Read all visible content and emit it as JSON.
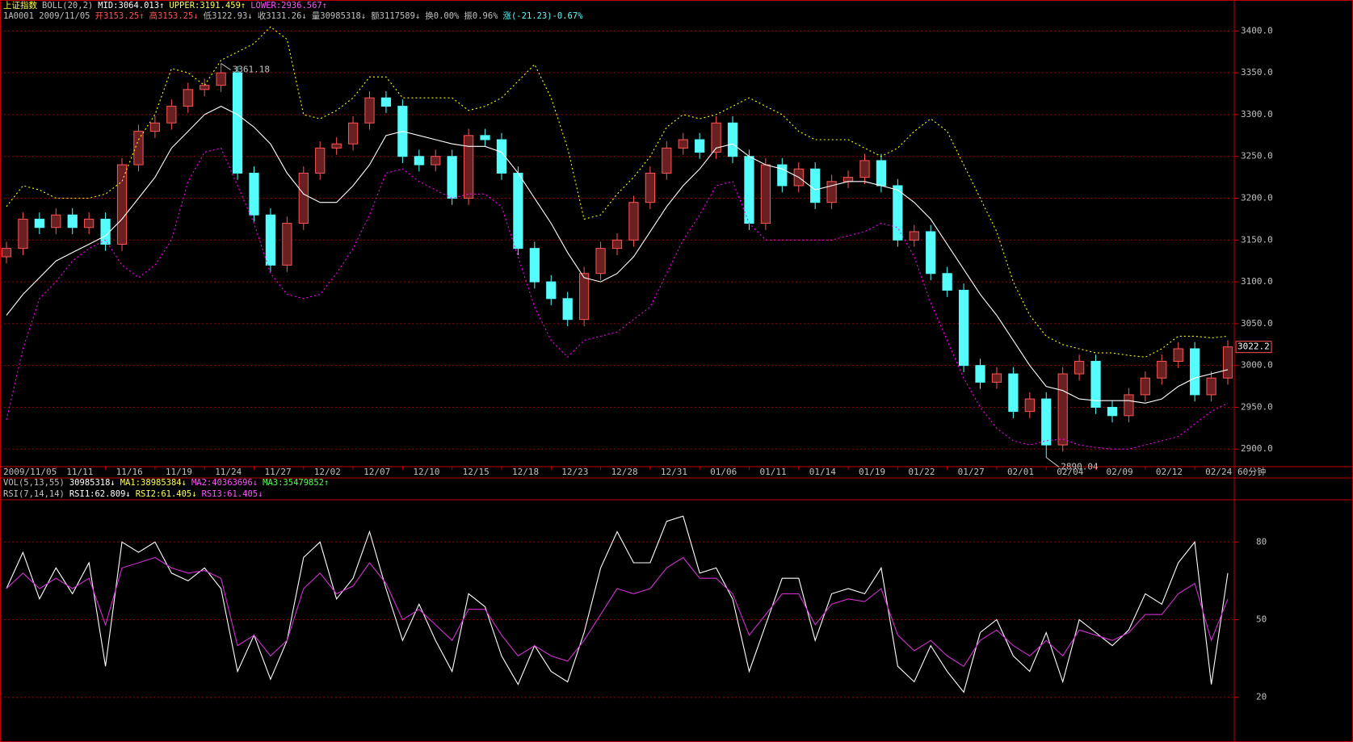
{
  "chart_data": {
    "type": "candlestick",
    "header": [
      [
        {
          "text": "上证指数",
          "color": "#ffff54"
        },
        {
          "text": "BOLL(20,2)",
          "color": "#c0c0c0"
        },
        {
          "text": "MID:3064.013↑",
          "color": "#ffffff"
        },
        {
          "text": "UPPER:3191.459↑",
          "color": "#ffff54"
        },
        {
          "text": "LOWER:2936.567↑",
          "color": "#ff54ff"
        }
      ],
      [
        {
          "text": "1A0001 2009/11/05",
          "color": "#c0c0c0"
        },
        {
          "text": "开3153.25↑",
          "color": "#ff5454"
        },
        {
          "text": "高3153.25↓",
          "color": "#ff5454"
        },
        {
          "text": "低3122.93↓",
          "color": "#c0c0c0"
        },
        {
          "text": "收3131.26↓",
          "color": "#c0c0c0"
        },
        {
          "text": "量30985318↓",
          "color": "#c0c0c0"
        },
        {
          "text": "额3117589↓",
          "color": "#c0c0c0"
        },
        {
          "text": "换0.00%",
          "color": "#c0c0c0"
        },
        {
          "text": "振0.96%",
          "color": "#c0c0c0"
        },
        {
          "text": "涨(-21.23)-0.67%",
          "color": "#54ffff"
        }
      ]
    ],
    "categories": [
      "2009/11/05",
      null,
      null,
      "11/11",
      null,
      null,
      "11/16",
      null,
      null,
      "11/19",
      null,
      null,
      "11/24",
      null,
      null,
      "11/27",
      null,
      null,
      "12/02",
      null,
      null,
      "12/07",
      null,
      null,
      "12/10",
      null,
      null,
      "12/15",
      null,
      null,
      "12/18",
      null,
      null,
      "12/23",
      null,
      null,
      "12/28",
      null,
      null,
      "12/31",
      null,
      null,
      "01/06",
      null,
      null,
      "01/11",
      null,
      null,
      "01/14",
      null,
      null,
      "01/19",
      null,
      null,
      "01/22",
      null,
      null,
      "01/27",
      null,
      null,
      "02/01",
      null,
      null,
      "02/04",
      null,
      null,
      "02/09",
      null,
      null,
      "02/12",
      null,
      null,
      "02/24",
      null,
      null
    ],
    "open": [
      3130,
      3140,
      3175,
      3165,
      3180,
      3165,
      3175,
      3145,
      3240,
      3280,
      3290,
      3310,
      3330,
      3335,
      3350,
      3230,
      3180,
      3120,
      3170,
      3230,
      3260,
      3265,
      3290,
      3320,
      3310,
      3250,
      3240,
      3250,
      3200,
      3275,
      3270,
      3230,
      3140,
      3100,
      3080,
      3055,
      3110,
      3140,
      3150,
      3195,
      3230,
      3260,
      3270,
      3255,
      3290,
      3250,
      3170,
      3240,
      3215,
      3235,
      3195,
      3220,
      3225,
      3245,
      3215,
      3150,
      3160,
      3110,
      3090,
      3000,
      2980,
      2990,
      2945,
      2960,
      2905,
      2990,
      3005,
      2950,
      2940,
      2965,
      2985,
      3005,
      3020,
      2965,
      2985
    ],
    "high": [
      3148,
      3183,
      3183,
      3188,
      3188,
      3183,
      3183,
      3248,
      3288,
      3298,
      3318,
      3338,
      3343,
      3361.18,
      3358,
      3238,
      3188,
      3178,
      3238,
      3268,
      3273,
      3298,
      3328,
      3328,
      3318,
      3258,
      3258,
      3258,
      3283,
      3283,
      3278,
      3238,
      3148,
      3108,
      3088,
      3118,
      3148,
      3158,
      3203,
      3238,
      3268,
      3278,
      3278,
      3298,
      3298,
      3258,
      3248,
      3248,
      3243,
      3243,
      3228,
      3233,
      3253,
      3253,
      3223,
      3168,
      3168,
      3118,
      3098,
      3008,
      2998,
      2998,
      2968,
      2968,
      2998,
      3013,
      3013,
      2958,
      2973,
      2993,
      3013,
      3028,
      3028,
      2993,
      3030.2
    ],
    "low": [
      3122,
      3132,
      3157,
      3157,
      3157,
      3157,
      3137,
      3137,
      3232,
      3272,
      3282,
      3302,
      3322,
      3327,
      3222,
      3172,
      3112,
      3112,
      3162,
      3222,
      3252,
      3257,
      3282,
      3302,
      3242,
      3232,
      3232,
      3192,
      3192,
      3262,
      3222,
      3132,
      3092,
      3072,
      3047,
      3047,
      3102,
      3132,
      3142,
      3187,
      3222,
      3252,
      3247,
      3247,
      3242,
      3162,
      3162,
      3207,
      3207,
      3187,
      3187,
      3212,
      3217,
      3207,
      3142,
      3142,
      3102,
      3082,
      2992,
      2972,
      2972,
      2937,
      2937,
      2890.04,
      2897,
      2982,
      2942,
      2932,
      2932,
      2957,
      2977,
      2997,
      2957,
      2957,
      2977
    ],
    "close": [
      3140,
      3175,
      3165,
      3180,
      3165,
      3175,
      3145,
      3240,
      3280,
      3290,
      3310,
      3330,
      3335,
      3350,
      3230,
      3180,
      3120,
      3170,
      3230,
      3260,
      3265,
      3290,
      3320,
      3310,
      3250,
      3240,
      3250,
      3200,
      3275,
      3270,
      3230,
      3140,
      3100,
      3080,
      3055,
      3110,
      3140,
      3150,
      3195,
      3230,
      3260,
      3270,
      3255,
      3290,
      3250,
      3170,
      3240,
      3215,
      3235,
      3195,
      3220,
      3225,
      3245,
      3215,
      3150,
      3160,
      3110,
      3090,
      3000,
      2980,
      2990,
      2945,
      2960,
      2905,
      2990,
      3005,
      2950,
      2940,
      2965,
      2985,
      3005,
      3020,
      2965,
      2985,
      3022.2
    ],
    "up_color": "#ff5454",
    "down_color": "#54fcfc",
    "series": [
      {
        "color": "#ffffff",
        "dash": false,
        "values": [
          3060,
          3085,
          3105,
          3125,
          3135,
          3145,
          3155,
          3175,
          3200,
          3225,
          3260,
          3280,
          3300,
          3310,
          3300,
          3285,
          3265,
          3230,
          3205,
          3195,
          3195,
          3215,
          3240,
          3275,
          3280,
          3275,
          3270,
          3265,
          3262,
          3262,
          3255,
          3230,
          3200,
          3170,
          3135,
          3105,
          3100,
          3110,
          3130,
          3160,
          3190,
          3215,
          3235,
          3260,
          3265,
          3250,
          3240,
          3235,
          3225,
          3210,
          3215,
          3220,
          3220,
          3215,
          3210,
          3195,
          3175,
          3145,
          3115,
          3085,
          3060,
          3030,
          3000,
          2975,
          2970,
          2960,
          2958,
          2958,
          2958,
          2955,
          2960,
          2975,
          2985,
          2990,
          2995
        ]
      },
      {
        "color": "#ffff00",
        "dash": true,
        "values": [
          3190,
          3215,
          3210,
          3200,
          3200,
          3200,
          3205,
          3220,
          3270,
          3300,
          3355,
          3350,
          3335,
          3365,
          3375,
          3385,
          3405,
          3390,
          3300,
          3295,
          3305,
          3320,
          3345,
          3345,
          3320,
          3320,
          3320,
          3320,
          3305,
          3310,
          3320,
          3340,
          3360,
          3320,
          3260,
          3175,
          3180,
          3205,
          3225,
          3250,
          3285,
          3300,
          3295,
          3300,
          3310,
          3320,
          3310,
          3300,
          3280,
          3270,
          3270,
          3270,
          3260,
          3250,
          3260,
          3280,
          3295,
          3280,
          3240,
          3200,
          3160,
          3100,
          3060,
          3035,
          3025,
          3020,
          3015,
          3015,
          3012,
          3010,
          3020,
          3035,
          3035,
          3033,
          3035
        ]
      },
      {
        "color": "#ff00ff",
        "dash": true,
        "values": [
          2935,
          3020,
          3080,
          3100,
          3125,
          3140,
          3150,
          3120,
          3105,
          3120,
          3150,
          3220,
          3255,
          3260,
          3215,
          3170,
          3110,
          3085,
          3080,
          3085,
          3110,
          3140,
          3180,
          3230,
          3235,
          3220,
          3210,
          3200,
          3205,
          3205,
          3190,
          3130,
          3070,
          3030,
          3010,
          3030,
          3035,
          3040,
          3055,
          3070,
          3110,
          3150,
          3180,
          3215,
          3220,
          3170,
          3150,
          3150,
          3150,
          3150,
          3150,
          3155,
          3160,
          3170,
          3165,
          3130,
          3075,
          3030,
          2985,
          2950,
          2925,
          2910,
          2905,
          2910,
          2912,
          2905,
          2902,
          2900,
          2900,
          2905,
          2910,
          2915,
          2930,
          2945,
          2955
        ]
      }
    ],
    "ylim": [
      2879,
      3410
    ],
    "yticks": [
      {
        "value": 2900,
        "label": "2900.0"
      },
      {
        "value": 2950,
        "label": "2950.0"
      },
      {
        "value": 3000,
        "label": "3000.0"
      },
      {
        "value": 3050,
        "label": "3050.0"
      },
      {
        "value": 3100,
        "label": "3100.0"
      },
      {
        "value": 3150,
        "label": "3150.0"
      },
      {
        "value": 3200,
        "label": "3200.0"
      },
      {
        "value": 3250,
        "label": "3250.0"
      },
      {
        "value": 3300,
        "label": "3300.0"
      },
      {
        "value": 3350,
        "label": "3350.0"
      },
      {
        "value": 3400,
        "label": "3400.0"
      }
    ],
    "grid": true,
    "period": "60分钟",
    "volume_header": [
      {
        "text": "VOL(5,13,55)",
        "color": "#c0c0c0"
      },
      {
        "text": "30985318↓",
        "color": "#ffffff"
      },
      {
        "text": "MA1:38985384↓",
        "color": "#ffff54"
      },
      {
        "text": "MA2:40363696↓",
        "color": "#ff54ff"
      },
      {
        "text": "MA3:35479852↑",
        "color": "#54ff54"
      }
    ],
    "indicator": {
      "type": "line",
      "header": [
        {
          "text": "RSI(7,14,14)",
          "color": "#c0c0c0"
        },
        {
          "text": "RSI1:62.809↓",
          "color": "#ffffff"
        },
        {
          "text": "RSI2:61.405↓",
          "color": "#ffff54"
        },
        {
          "text": "RSI3:61.405↓",
          "color": "#ff54ff"
        }
      ],
      "series": [
        {
          "color": "#ffffff",
          "values": [
            62,
            76,
            58,
            70,
            60,
            72,
            32,
            80,
            76,
            80,
            68,
            65,
            70,
            62,
            30,
            44,
            27,
            42,
            74,
            80,
            58,
            66,
            84,
            62,
            42,
            56,
            42,
            30,
            60,
            55,
            36,
            25,
            40,
            30,
            26,
            45,
            70,
            84,
            72,
            72,
            88,
            90,
            68,
            70,
            58,
            30,
            48,
            66,
            66,
            42,
            60,
            62,
            60,
            70,
            32,
            26,
            40,
            30,
            22,
            45,
            50,
            36,
            30,
            45,
            26,
            50,
            45,
            40,
            46,
            60,
            56,
            72,
            80,
            25,
            68
          ]
        },
        {
          "color": "#d030d0",
          "values": [
            62,
            68,
            62,
            66,
            62,
            66,
            48,
            70,
            72,
            74,
            70,
            68,
            69,
            66,
            40,
            44,
            36,
            42,
            62,
            68,
            60,
            63,
            72,
            64,
            50,
            54,
            48,
            42,
            54,
            54,
            44,
            36,
            40,
            36,
            34,
            42,
            52,
            62,
            60,
            62,
            70,
            74,
            66,
            66,
            60,
            44,
            52,
            60,
            60,
            48,
            56,
            58,
            57,
            62,
            44,
            38,
            42,
            36,
            32,
            42,
            46,
            40,
            36,
            42,
            36,
            46,
            44,
            42,
            45,
            52,
            52,
            60,
            64,
            42,
            58
          ]
        }
      ],
      "ylim": [
        4,
        96
      ],
      "yticks": [
        20,
        50,
        80
      ]
    }
  }
}
